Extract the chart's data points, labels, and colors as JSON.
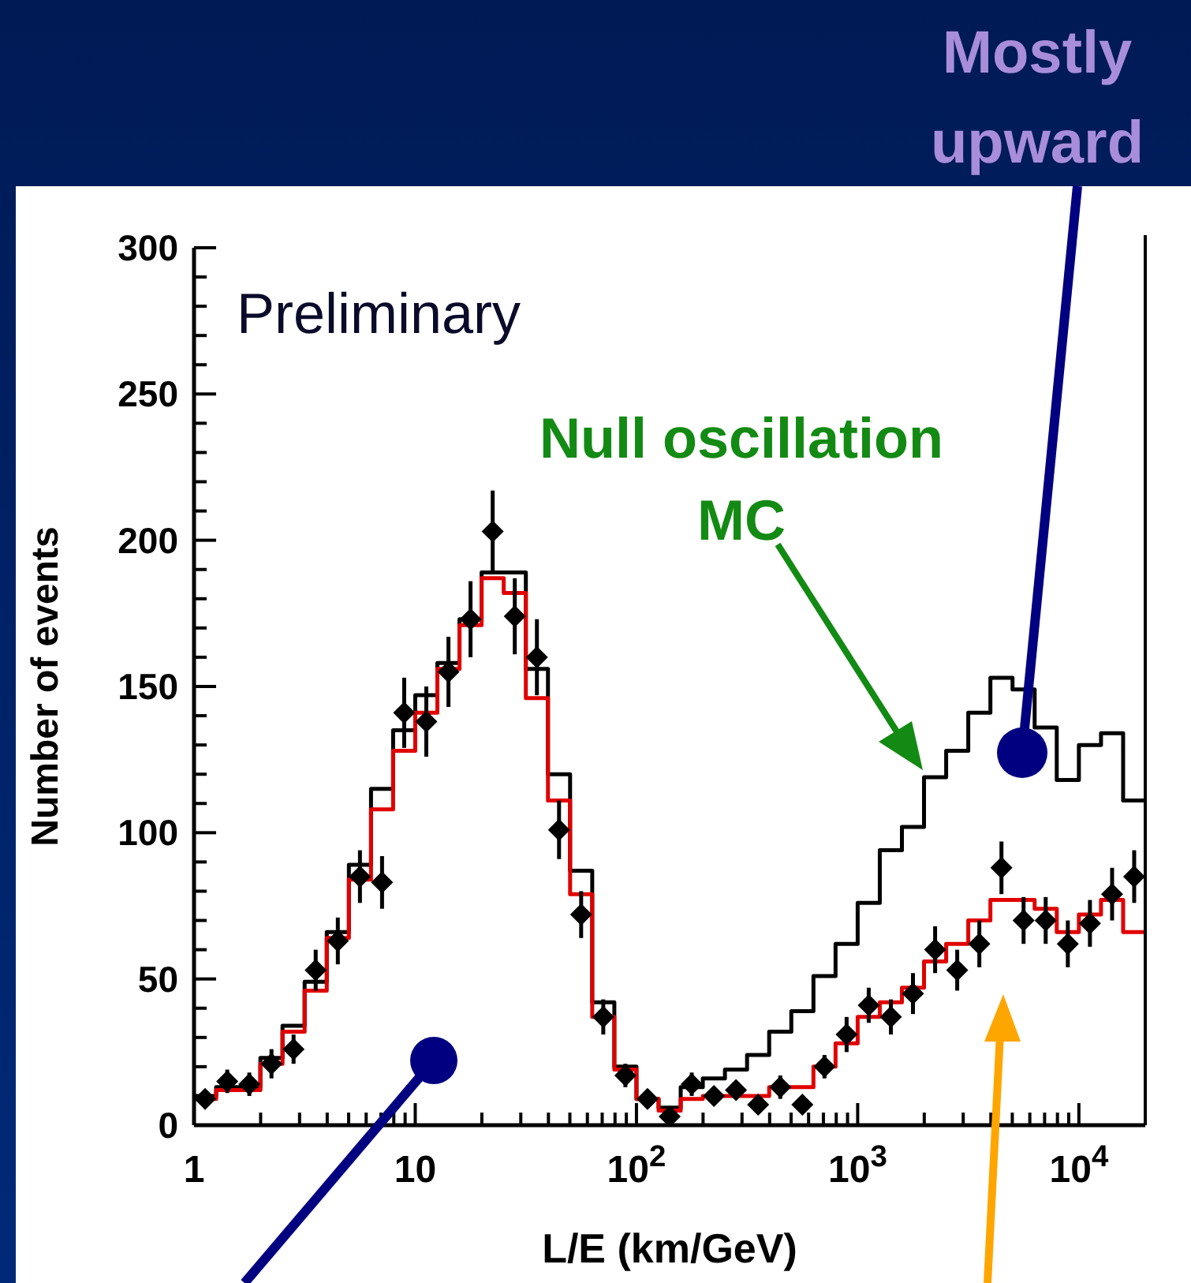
{
  "chart_data": {
    "type": "step",
    "xlabel": "L/E (km/GeV)",
    "ylabel": "Number of events",
    "annotations": [
      "Preliminary",
      "Null oscillation MC",
      "Mostly upward"
    ],
    "x": [
      1,
      1.259,
      1.585,
      1.995,
      2.512,
      3.162,
      3.981,
      5.012,
      6.31,
      7.943,
      10,
      12.59,
      15.85,
      19.95,
      25.12,
      31.62,
      39.81,
      50.12,
      63.1,
      79.43,
      100,
      125.9,
      158.5,
      199.5,
      251.2,
      316.2,
      398.1,
      501.2,
      631,
      794.3,
      1000,
      1259,
      1585,
      1995,
      2512,
      3162,
      3981,
      5012,
      6310,
      7943,
      10000,
      12589,
      15849,
      19953
    ],
    "series": [
      {
        "color": "#000000",
        "values": [
          10,
          13,
          13,
          23,
          34,
          49,
          66,
          89,
          115,
          135,
          147,
          158,
          173,
          189,
          189,
          156,
          120,
          87,
          42,
          20,
          9,
          6,
          13,
          16,
          19,
          24,
          32,
          39,
          51,
          62,
          76,
          94,
          102,
          119,
          128,
          141,
          153,
          149,
          136,
          118,
          130,
          134,
          111,
          111
        ]
      },
      {
        "color": "#e00000",
        "values": [
          9,
          12,
          12,
          21,
          32,
          46,
          64,
          84,
          108,
          128,
          141,
          156,
          171,
          187,
          182,
          146,
          111,
          79,
          37,
          19,
          9,
          5,
          9,
          10,
          10,
          10,
          13,
          13,
          20,
          28,
          37,
          42,
          47,
          56,
          62,
          70,
          77,
          77,
          74,
          66,
          72,
          77,
          66,
          66
        ]
      },
      {
        "type": "scatter",
        "color": "#000000",
        "marker": "diamond",
        "x": [
          1.122,
          1.413,
          1.778,
          2.239,
          2.818,
          3.548,
          4.467,
          5.623,
          7.079,
          8.913,
          11.22,
          14.13,
          17.78,
          22.39,
          28.18,
          35.48,
          44.67,
          56.23,
          70.79,
          89.13,
          112.2,
          141.3,
          177.8,
          223.9,
          281.8,
          354.8,
          446.7,
          562.3,
          707.9,
          891.3,
          1122,
          1413,
          1778,
          2239,
          2818,
          3548,
          4467,
          5623,
          7079,
          8913,
          11220,
          14130,
          17780
        ],
        "values": [
          9,
          15,
          14,
          21,
          26,
          53,
          63,
          85,
          83,
          141,
          138,
          155,
          173,
          203,
          174,
          160,
          101,
          72,
          37,
          17,
          9,
          3,
          14,
          10,
          12,
          7,
          13,
          7,
          20,
          31,
          41,
          37,
          45,
          60,
          53,
          62,
          88,
          70,
          70,
          62,
          69,
          79,
          85
        ],
        "errors": [
          3,
          4,
          4,
          5,
          5,
          7,
          8,
          9,
          9,
          12,
          12,
          12,
          13,
          14,
          13,
          13,
          10,
          8,
          6,
          4,
          3,
          2,
          4,
          3,
          3,
          3,
          4,
          3,
          4,
          6,
          6,
          6,
          7,
          8,
          7,
          8,
          9,
          8,
          8,
          8,
          8,
          9,
          9
        ]
      }
    ],
    "xlim": [
      1,
      19953
    ],
    "xticks": [
      1,
      {
        "value": 2,
        "label": null
      },
      {
        "value": 3,
        "label": null
      },
      {
        "value": 4,
        "label": null
      },
      {
        "value": 5,
        "label": null
      },
      {
        "value": 6,
        "label": null
      },
      {
        "value": 7,
        "label": null
      },
      {
        "value": 8,
        "label": null
      },
      {
        "value": 9,
        "label": null
      },
      10,
      {
        "value": 20,
        "label": null
      },
      {
        "value": 30,
        "label": null
      },
      {
        "value": 40,
        "label": null
      },
      {
        "value": 50,
        "label": null
      },
      {
        "value": 60,
        "label": null
      },
      {
        "value": 70,
        "label": null
      },
      {
        "value": 80,
        "label": null
      },
      {
        "value": 90,
        "label": null
      },
      {
        "value": 100,
        "label": "10$^{2}$"
      },
      {
        "value": 200,
        "label": null
      },
      {
        "value": 300,
        "label": null
      },
      {
        "value": 400,
        "label": null
      },
      {
        "value": 500,
        "label": null
      },
      {
        "value": 600,
        "label": null
      },
      {
        "value": 700,
        "label": null
      },
      {
        "value": 800,
        "label": null
      },
      {
        "value": 900,
        "label": null
      },
      {
        "value": 1000,
        "label": "10$^{3}$"
      },
      {
        "value": 2000,
        "label": null
      },
      {
        "value": 3000,
        "label": null
      },
      {
        "value": 4000,
        "label": null
      },
      {
        "value": 5000,
        "label": null
      },
      {
        "value": 6000,
        "label": null
      },
      {
        "value": 7000,
        "label": null
      },
      {
        "value": 8000,
        "label": null
      },
      {
        "value": 9000,
        "label": null
      },
      {
        "value": 10000,
        "label": "10$^{4}$"
      }
    ],
    "ylim": [
      0,
      300
    ],
    "yticks": [
      0,
      {
        "value": 10,
        "label": null
      },
      {
        "value": 20,
        "label": null
      },
      {
        "value": 30,
        "label": null
      },
      {
        "value": 40,
        "label": null
      },
      50,
      {
        "value": 60,
        "label": null
      },
      {
        "value": 70,
        "label": null
      },
      {
        "value": 80,
        "label": null
      },
      {
        "value": 90,
        "label": null
      },
      100,
      {
        "value": 110,
        "label": null
      },
      {
        "value": 120,
        "label": null
      },
      {
        "value": 130,
        "label": null
      },
      {
        "value": 140,
        "label": null
      },
      150,
      {
        "value": 160,
        "label": null
      },
      {
        "value": 170,
        "label": null
      },
      {
        "value": 180,
        "label": null
      },
      {
        "value": 190,
        "label": null
      },
      200,
      {
        "value": 210,
        "label": null
      },
      {
        "value": 220,
        "label": null
      },
      {
        "value": 230,
        "label": null
      },
      {
        "value": 240,
        "label": null
      },
      250,
      {
        "value": 260,
        "label": null
      },
      {
        "value": 270,
        "label": null
      },
      {
        "value": 280,
        "label": null
      },
      {
        "value": 290,
        "label": null
      },
      300
    ],
    "log": "x"
  }
}
